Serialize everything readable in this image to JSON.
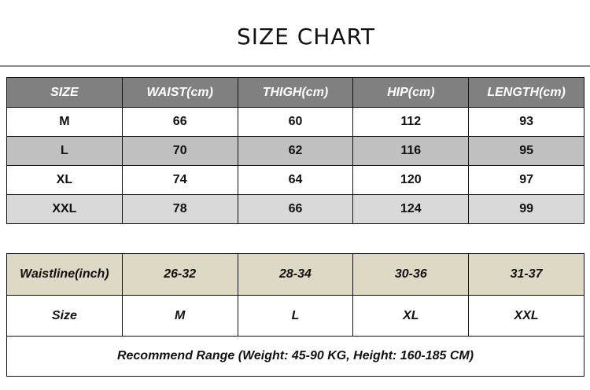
{
  "title": "SIZE CHART",
  "cm_table": {
    "headers": [
      "SIZE",
      "WAIST(cm)",
      "THIGH(cm)",
      "HIP(cm)",
      "LENGTH(cm)"
    ],
    "rows": [
      [
        "M",
        "66",
        "60",
        "112",
        "93"
      ],
      [
        "L",
        "70",
        "62",
        "116",
        "95"
      ],
      [
        "XL",
        "74",
        "64",
        "120",
        "97"
      ],
      [
        "XXL",
        "78",
        "66",
        "124",
        "99"
      ]
    ]
  },
  "inch_table": {
    "waistline": [
      "Waistline(inch)",
      "26-32",
      "28-34",
      "30-36",
      "31-37"
    ],
    "size": [
      "Size",
      "M",
      "L",
      "XL",
      "XXL"
    ],
    "note": "Recommend Range (Weight: 45-90 KG, Height: 160-185 CM)"
  },
  "colors": {
    "header": "#808080",
    "stripe_dark": "#c0c0c0",
    "stripe_light": "#d9d9d9",
    "waistline_row": "#ddd9c4"
  }
}
